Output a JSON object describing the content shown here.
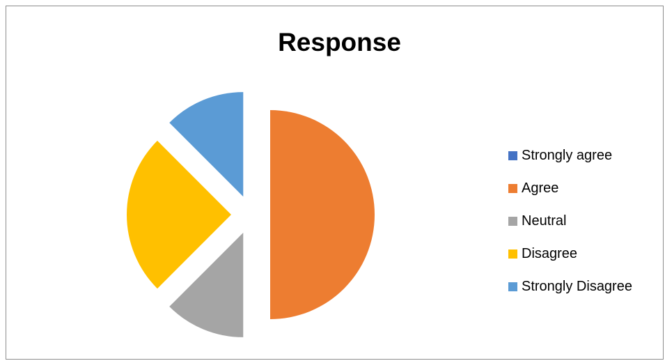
{
  "chart_data": {
    "type": "pie",
    "title": "Response",
    "categories": [
      "Strongly agree",
      "Agree",
      "Neutral",
      "Disagree",
      "Strongly Disagree"
    ],
    "values": [
      0,
      50,
      12.5,
      25,
      12.5
    ],
    "exploded": true,
    "start_angle_deg": 0,
    "direction": "clockwise",
    "colors": [
      "#4472C4",
      "#ED7D31",
      "#A5A5A5",
      "#FFC000",
      "#5B9BD5"
    ],
    "legend_position": "right"
  }
}
